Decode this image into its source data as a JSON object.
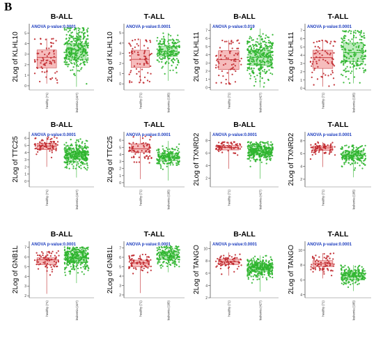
{
  "panel_label": "B",
  "colors": {
    "healthy": "#c0282d",
    "healthy_box": "#f3a6a6",
    "leukemia": "#2fb52f",
    "leukemia_box": "#a8e6a8",
    "pvalue": "#1f3fbf"
  },
  "chart_data": [
    {
      "type": "box-scatter",
      "title": "B-ALL",
      "ylabel": "2Log of KLHL10",
      "pvalue": "ANOVA p-value:0.0001",
      "yticks": [
        "0",
        "1",
        "2",
        "3",
        "4",
        "5"
      ],
      "ylim": [
        -0.4,
        5.9
      ],
      "categories": [
        "healthy (71)",
        "leukemia (427)"
      ],
      "series": [
        {
          "name": "healthy (71)",
          "n": 71,
          "q1": 1.7,
          "median": 2.7,
          "q3": 3.4,
          "min": 0.2,
          "max": 4.5
        },
        {
          "name": "leukemia (427)",
          "n": 427,
          "q1": 2.5,
          "median": 3.4,
          "q3": 4.0,
          "min": -0.1,
          "max": 5.5
        }
      ]
    },
    {
      "type": "box-scatter",
      "title": "T-ALL",
      "ylabel": "2Log of KLHL10",
      "pvalue": "ANOVA p-value:0.0001",
      "yticks": [
        "0",
        "1",
        "2",
        "3",
        "4",
        "5"
      ],
      "ylim": [
        -0.6,
        5.9
      ],
      "categories": [
        "healthy (71)",
        "leukemia (185)"
      ],
      "series": [
        {
          "name": "healthy (71)",
          "n": 71,
          "q1": 1.6,
          "median": 2.4,
          "q3": 3.3,
          "min": 0.1,
          "max": 4.4
        },
        {
          "name": "leukemia (185)",
          "n": 185,
          "q1": 2.7,
          "median": 3.2,
          "q3": 3.7,
          "min": 0.3,
          "max": 5.0
        }
      ]
    },
    {
      "type": "box-scatter",
      "title": "B-ALL",
      "ylabel": "2Log of KLHL11",
      "pvalue": "ANOVA p-value:0.019",
      "yticks": [
        "0",
        "1",
        "2",
        "3",
        "4",
        "5",
        "6",
        "7"
      ],
      "ylim": [
        -0.3,
        7.8
      ],
      "categories": [
        "healthy (71)",
        "leukemia (427)"
      ],
      "series": [
        {
          "name": "healthy (71)",
          "n": 71,
          "q1": 2.2,
          "median": 3.4,
          "q3": 4.5,
          "min": 0.4,
          "max": 5.8
        },
        {
          "name": "leukemia (427)",
          "n": 427,
          "q1": 2.7,
          "median": 3.7,
          "q3": 4.6,
          "min": 0.0,
          "max": 7.2
        }
      ]
    },
    {
      "type": "box-scatter",
      "title": "T-ALL",
      "ylabel": "2Log of KLHL11",
      "pvalue": "ANOVA p-value:0.0001",
      "yticks": [
        "0",
        "1",
        "2",
        "3",
        "4",
        "5",
        "6",
        "7"
      ],
      "ylim": [
        -0.2,
        7.8
      ],
      "categories": [
        "healthy (71)",
        "leukemia (185)"
      ],
      "series": [
        {
          "name": "healthy (71)",
          "n": 71,
          "q1": 2.4,
          "median": 3.7,
          "q3": 4.6,
          "min": 0.2,
          "max": 5.8
        },
        {
          "name": "leukemia (185)",
          "n": 185,
          "q1": 3.2,
          "median": 4.3,
          "q3": 5.5,
          "min": 0.6,
          "max": 7.0
        }
      ]
    },
    {
      "type": "box-scatter",
      "title": "B-ALL",
      "ylabel": "2Log of TTC25",
      "pvalue": "ANOVA p-value:0.0001",
      "yticks": [
        "0",
        "1",
        "2",
        "3",
        "4",
        "5",
        "6"
      ],
      "ylim": [
        -0.8,
        6.9
      ],
      "categories": [
        "healthy (71)",
        "leukemia (427)"
      ],
      "series": [
        {
          "name": "healthy (71)",
          "n": 71,
          "q1": 4.4,
          "median": 4.9,
          "q3": 5.3,
          "min": 2.0,
          "max": 6.2
        },
        {
          "name": "leukemia (427)",
          "n": 427,
          "q1": 3.1,
          "median": 3.7,
          "q3": 4.2,
          "min": 0.5,
          "max": 5.9
        }
      ]
    },
    {
      "type": "box-scatter",
      "title": "T-ALL",
      "ylabel": "2Log of TTC25",
      "pvalue": "ANOVA p-value:0.0001",
      "yticks": [
        "0",
        "1",
        "2",
        "3",
        "4",
        "5",
        "6"
      ],
      "ylim": [
        -0.6,
        7.2
      ],
      "categories": [
        "healthy (71)",
        "leukemia (185)"
      ],
      "series": [
        {
          "name": "healthy (71)",
          "n": 71,
          "q1": 4.3,
          "median": 4.8,
          "q3": 5.5,
          "min": 0.5,
          "max": 6.6
        },
        {
          "name": "leukemia (185)",
          "n": 185,
          "q1": 3.1,
          "median": 3.6,
          "q3": 4.1,
          "min": 0.3,
          "max": 5.9
        }
      ]
    },
    {
      "type": "box-scatter",
      "title": "B-ALL",
      "ylabel": "2Log of TXNRD2",
      "pvalue": "ANOVA p-value:0.0001",
      "yticks": [
        "2",
        "4",
        "6",
        "8"
      ],
      "ylim": [
        0.6,
        9.4
      ],
      "categories": [
        "healthy (71)",
        "leukemia (427)"
      ],
      "series": [
        {
          "name": "healthy (71)",
          "n": 71,
          "q1": 6.5,
          "median": 6.9,
          "q3": 7.2,
          "min": 3.5,
          "max": 7.8
        },
        {
          "name": "leukemia (427)",
          "n": 427,
          "q1": 5.7,
          "median": 6.3,
          "q3": 6.7,
          "min": 1.9,
          "max": 7.8
        }
      ]
    },
    {
      "type": "box-scatter",
      "title": "T-ALL",
      "ylabel": "2Log of TXNRD2",
      "pvalue": "ANOVA p-value:0.0001",
      "yticks": [
        "2",
        "4",
        "6",
        "8"
      ],
      "ylim": [
        0.8,
        9.4
      ],
      "categories": [
        "healthy (71)",
        "leukemia (185)"
      ],
      "series": [
        {
          "name": "healthy (71)",
          "n": 71,
          "q1": 6.5,
          "median": 6.9,
          "q3": 7.2,
          "min": 3.9,
          "max": 7.8
        },
        {
          "name": "leukemia (185)",
          "n": 185,
          "q1": 5.2,
          "median": 5.8,
          "q3": 6.4,
          "min": 2.3,
          "max": 7.4
        }
      ]
    },
    {
      "type": "box-scatter",
      "title": "B-ALL",
      "ylabel": "2Log of GNB1L",
      "pvalue": "ANOVA p-value:0.0001",
      "yticks": [
        "2",
        "3",
        "4",
        "5",
        "6",
        "7"
      ],
      "ylim": [
        1.8,
        7.6
      ],
      "categories": [
        "healthy (71)",
        "leukemia (427)"
      ],
      "series": [
        {
          "name": "healthy (71)",
          "n": 71,
          "q1": 5.2,
          "median": 5.7,
          "q3": 5.9,
          "min": 2.2,
          "max": 6.6
        },
        {
          "name": "leukemia (427)",
          "n": 427,
          "q1": 5.4,
          "median": 5.9,
          "q3": 6.3,
          "min": 3.3,
          "max": 7.0
        }
      ]
    },
    {
      "type": "box-scatter",
      "title": "T-ALL",
      "ylabel": "2Log of GNB1L",
      "pvalue": "ANOVA p-value:0.0001",
      "yticks": [
        "2",
        "3",
        "4",
        "5",
        "6",
        "7"
      ],
      "ylim": [
        1.7,
        7.7
      ],
      "categories": [
        "healthy (71)",
        "leukemia (185)"
      ],
      "series": [
        {
          "name": "healthy (71)",
          "n": 71,
          "q1": 5.0,
          "median": 5.4,
          "q3": 5.7,
          "min": 2.2,
          "max": 6.3
        },
        {
          "name": "leukemia (185)",
          "n": 185,
          "q1": 5.8,
          "median": 6.2,
          "q3": 6.6,
          "min": 4.4,
          "max": 7.2
        }
      ]
    },
    {
      "type": "box-scatter",
      "title": "B-ALL",
      "ylabel": "2Log of TANGO",
      "pvalue": "ANOVA p-value:0.0001",
      "yticks": [
        "2",
        "4",
        "6",
        "8",
        "10"
      ],
      "ylim": [
        2.0,
        11.2
      ],
      "categories": [
        "healthy (71)",
        "leukemia (427)"
      ],
      "series": [
        {
          "name": "healthy (71)",
          "n": 71,
          "q1": 7.4,
          "median": 7.9,
          "q3": 8.3,
          "min": 5.6,
          "max": 9.4
        },
        {
          "name": "leukemia (427)",
          "n": 427,
          "q1": 6.3,
          "median": 6.9,
          "q3": 7.4,
          "min": 3.0,
          "max": 8.9
        }
      ]
    },
    {
      "type": "box-scatter",
      "title": "T-ALL",
      "ylabel": "2Log of TANGO",
      "pvalue": "ANOVA p-value:0.0001",
      "yticks": [
        "4",
        "6",
        "8",
        "10"
      ],
      "ylim": [
        3.6,
        11.2
      ],
      "categories": [
        "healthy (71)",
        "leukemia (185)"
      ],
      "series": [
        {
          "name": "healthy (71)",
          "n": 71,
          "q1": 7.8,
          "median": 8.2,
          "q3": 8.6,
          "min": 6.2,
          "max": 9.6
        },
        {
          "name": "leukemia (185)",
          "n": 185,
          "q1": 6.0,
          "median": 6.6,
          "q3": 7.0,
          "min": 4.5,
          "max": 8.0
        }
      ]
    }
  ]
}
